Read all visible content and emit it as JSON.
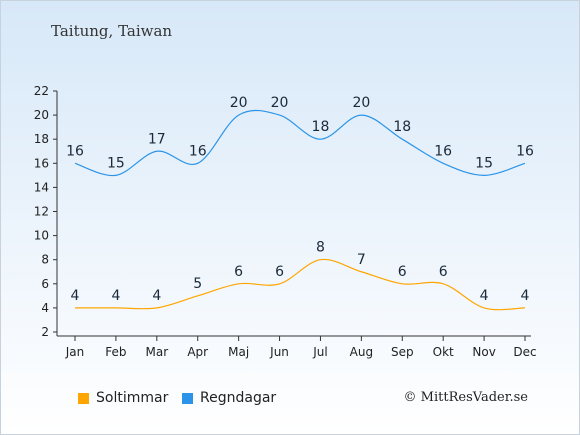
{
  "chart_data": {
    "type": "line",
    "title": "Taitung, Taiwan",
    "categories": [
      "Jan",
      "Feb",
      "Mar",
      "Apr",
      "Maj",
      "Jun",
      "Jul",
      "Aug",
      "Sep",
      "Okt",
      "Nov",
      "Dec"
    ],
    "ylim": [
      2,
      22
    ],
    "yticks": [
      2,
      4,
      6,
      8,
      10,
      12,
      14,
      16,
      18,
      20,
      22
    ],
    "grid": false,
    "legend_position": "bottom-left",
    "series": [
      {
        "name": "Soltimmar",
        "color": "#ffa500",
        "values": [
          4,
          4,
          4,
          5,
          6,
          6,
          8,
          7,
          6,
          6,
          4,
          4
        ]
      },
      {
        "name": "Regndagar",
        "color": "#2b94e8",
        "values": [
          16,
          15,
          17,
          16,
          20,
          20,
          18,
          20,
          18,
          16,
          15,
          16
        ]
      }
    ]
  },
  "credit": "© MittResVader.se"
}
